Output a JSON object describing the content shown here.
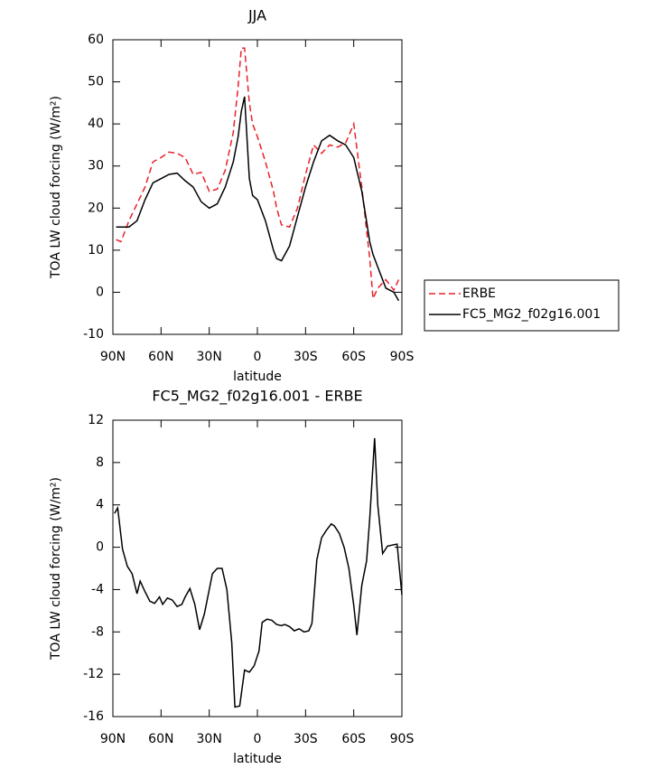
{
  "chart_data": [
    {
      "type": "line",
      "title": "JJA",
      "xlabel": "latitude",
      "ylabel": "TOA LW cloud forcing (W/m²)",
      "x": [
        88,
        85,
        80,
        75,
        70,
        65,
        60,
        55,
        50,
        45,
        40,
        35,
        30,
        25,
        20,
        15,
        12,
        10,
        8,
        5,
        3,
        0,
        -5,
        -10,
        -12,
        -15,
        -20,
        -25,
        -30,
        -35,
        -40,
        -45,
        -50,
        -55,
        -60,
        -65,
        -70,
        -72,
        -75,
        -80,
        -85,
        -88
      ],
      "series": [
        {
          "name": "ERBE",
          "color": "#e8212a",
          "line_style": "dashed",
          "values": [
            12.5,
            12,
            17,
            21,
            25,
            31,
            32,
            33.3,
            33,
            32,
            28,
            28.5,
            24,
            24.5,
            29,
            38,
            49,
            58,
            58,
            45,
            40,
            37,
            31,
            24,
            20,
            16,
            15.5,
            20,
            28,
            35,
            33,
            35,
            34.5,
            35.5,
            40,
            25,
            8,
            -1.5,
            1,
            3,
            0.5,
            3
          ]
        },
        {
          "name": "FC5_MG2_f02g16.001",
          "color": "#000000",
          "line_style": "solid",
          "values": [
            15.5,
            15.5,
            15.5,
            17,
            22,
            26,
            27,
            28,
            28.3,
            26.5,
            25,
            21.5,
            20,
            21,
            25,
            31,
            37,
            43,
            46.5,
            27,
            23,
            22,
            17,
            10,
            8,
            7.5,
            11,
            18,
            25,
            31,
            36,
            37.3,
            36,
            35,
            32,
            24,
            12,
            9,
            6,
            1,
            0,
            -2
          ]
        }
      ],
      "xlim": [
        90,
        -90
      ],
      "xticks": [
        {
          "value": 90,
          "label": "90N"
        },
        {
          "value": 60,
          "label": "60N"
        },
        {
          "value": 30,
          "label": "30N"
        },
        0,
        {
          "value": -30,
          "label": "30S"
        },
        {
          "value": -60,
          "label": "60S"
        },
        {
          "value": -90,
          "label": "90S"
        }
      ],
      "ylim": [
        -10,
        60
      ],
      "yticks": [
        -10,
        0,
        10,
        20,
        30,
        40,
        50,
        60
      ],
      "legend": "right"
    },
    {
      "type": "line",
      "title": "FC5_MG2_f02g16.001 - ERBE",
      "xlabel": "latitude",
      "ylabel": "TOA LW cloud forcing (W/m²)",
      "x": [
        89,
        87,
        84,
        81,
        78,
        75,
        73,
        70,
        67,
        64,
        61,
        59,
        56,
        53,
        50,
        47,
        45,
        42,
        39,
        36,
        33,
        30,
        28,
        25,
        22,
        19,
        16,
        14,
        11,
        8,
        5,
        2,
        -1,
        -3,
        -6,
        -9,
        -12,
        -15,
        -17,
        -20,
        -23,
        -26,
        -29,
        -32,
        -34,
        -37,
        -40,
        -43,
        -46,
        -48,
        -51,
        -54,
        -57,
        -60,
        -62,
        -65,
        -68,
        -70,
        -73,
        -75,
        -78,
        -81,
        -84,
        -87,
        -90
      ],
      "color": "#000000",
      "values": [
        3.2,
        3.7,
        -0.2,
        -1.8,
        -2.5,
        -4.4,
        -3.2,
        -4.2,
        -5.1,
        -5.3,
        -4.7,
        -5.4,
        -4.8,
        -5.0,
        -5.6,
        -5.4,
        -4.7,
        -3.9,
        -5.4,
        -7.8,
        -6.3,
        -4.0,
        -2.5,
        -2.0,
        -2.0,
        -4.0,
        -9,
        -15.1,
        -15.0,
        -11.6,
        -11.8,
        -11.2,
        -9.8,
        -7.1,
        -6.8,
        -6.9,
        -7.3,
        -7.4,
        -7.3,
        -7.5,
        -7.9,
        -7.7,
        -8.0,
        -7.9,
        -7.2,
        -1.2,
        0.9,
        1.6,
        2.2,
        2.0,
        1.3,
        0,
        -2,
        -5.5,
        -8.3,
        -3.6,
        -1.3,
        2.7,
        10.3,
        4,
        -0.6,
        0.1,
        0.2,
        0.3,
        -4.5
      ],
      "xlim": [
        90,
        -90
      ],
      "xticks": [
        {
          "value": 90,
          "label": "90N"
        },
        {
          "value": 60,
          "label": "60N"
        },
        {
          "value": 30,
          "label": "30N"
        },
        0,
        {
          "value": -30,
          "label": "30S"
        },
        {
          "value": -60,
          "label": "60S"
        },
        {
          "value": -90,
          "label": "90S"
        }
      ],
      "ylim": [
        -16,
        12
      ],
      "yticks": [
        -16,
        -12,
        -8,
        -4,
        0,
        4,
        8,
        12
      ]
    }
  ]
}
